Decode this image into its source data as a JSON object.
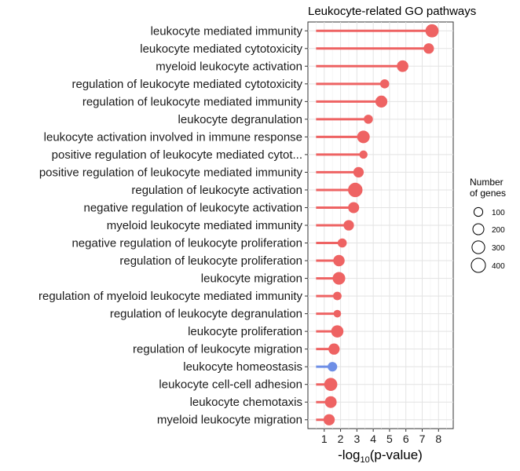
{
  "chart_data": {
    "type": "lollipop",
    "title": "Leukocyte-related GO pathways",
    "xlabel_main": "-log",
    "xlabel_sub": "10",
    "xlabel_rest": "(p-value)",
    "ylabel": "",
    "xlim": [
      0,
      8.9
    ],
    "xticks": [
      1,
      2,
      3,
      4,
      5,
      6,
      7,
      8
    ],
    "grid": true,
    "legend_position": "right",
    "legend": {
      "title_line1": "Number",
      "title_line2": "of genes",
      "sizes": [
        100,
        200,
        300,
        400
      ],
      "labels": [
        "100",
        "200",
        "300",
        "400"
      ]
    },
    "colors": {
      "up": "#EE6363",
      "down": "#6F8FE6"
    },
    "categories": [
      "leukocyte mediated immunity",
      "leukocyte mediated cytotoxicity",
      "myeloid leukocyte activation",
      "regulation of leukocyte mediated cytotoxicity",
      "regulation of leukocyte mediated immunity",
      "leukocyte degranulation",
      "leukocyte activation involved in immune response",
      "positive regulation of leukocyte mediated cytot...",
      "positive regulation of leukocyte mediated immunity",
      "regulation of leukocyte activation",
      "negative regulation of leukocyte activation",
      "myeloid leukocyte mediated immunity",
      "negative regulation of leukocyte proliferation",
      "regulation of leukocyte proliferation",
      "leukocyte migration",
      "regulation of myeloid leukocyte mediated immunity",
      "regulation of leukocyte degranulation",
      "leukocyte proliferation",
      "regulation of leukocyte migration",
      "leukocyte homeostasis",
      "leukocyte cell-cell adhesion",
      "leukocyte chemotaxis",
      "myeloid leukocyte migration"
    ],
    "values": [
      7.6,
      7.4,
      5.8,
      4.7,
      4.5,
      3.7,
      3.4,
      3.4,
      3.1,
      2.9,
      2.8,
      2.5,
      2.1,
      1.9,
      1.9,
      1.8,
      1.8,
      1.8,
      1.6,
      1.5,
      1.4,
      1.4,
      1.3
    ],
    "gene_counts": [
      330,
      170,
      230,
      110,
      250,
      110,
      290,
      80,
      170,
      420,
      200,
      170,
      110,
      220,
      290,
      90,
      60,
      270,
      210,
      130,
      320,
      240,
      210
    ],
    "direction": [
      "up",
      "up",
      "up",
      "up",
      "up",
      "up",
      "up",
      "up",
      "up",
      "up",
      "up",
      "up",
      "up",
      "up",
      "up",
      "up",
      "up",
      "up",
      "up",
      "down",
      "up",
      "up",
      "up"
    ]
  }
}
